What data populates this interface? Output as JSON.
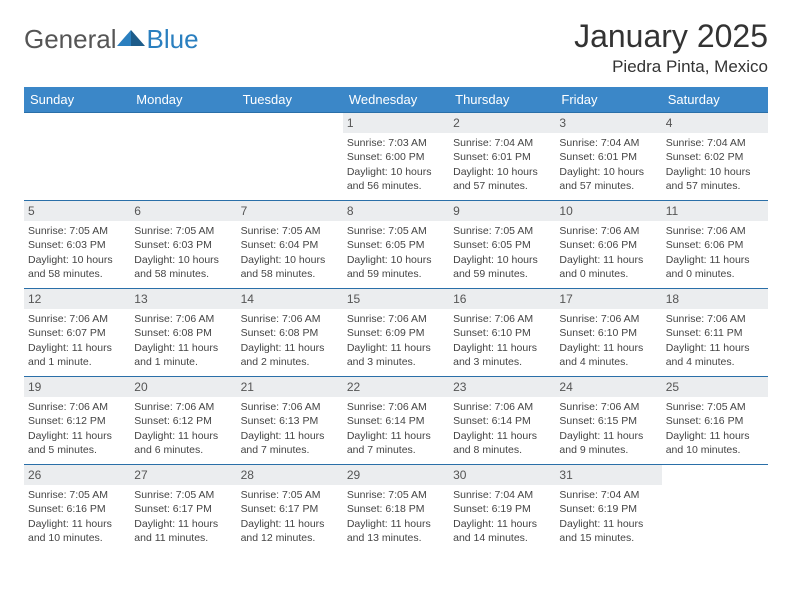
{
  "brand": {
    "general": "General",
    "blue": "Blue"
  },
  "title": {
    "month": "January 2025",
    "location": "Piedra Pinta, Mexico"
  },
  "colors": {
    "header_bg": "#3b87c8",
    "row_border": "#2a6fa8",
    "daynum_bg": "#ebedef",
    "text": "#444444",
    "brand_blue": "#2a7fbf"
  },
  "weekdays": [
    "Sunday",
    "Monday",
    "Tuesday",
    "Wednesday",
    "Thursday",
    "Friday",
    "Saturday"
  ],
  "rows": [
    [
      null,
      null,
      null,
      {
        "d": "1",
        "sr": "7:03 AM",
        "ss": "6:00 PM",
        "dl": "10 hours and 56 minutes."
      },
      {
        "d": "2",
        "sr": "7:04 AM",
        "ss": "6:01 PM",
        "dl": "10 hours and 57 minutes."
      },
      {
        "d": "3",
        "sr": "7:04 AM",
        "ss": "6:01 PM",
        "dl": "10 hours and 57 minutes."
      },
      {
        "d": "4",
        "sr": "7:04 AM",
        "ss": "6:02 PM",
        "dl": "10 hours and 57 minutes."
      }
    ],
    [
      {
        "d": "5",
        "sr": "7:05 AM",
        "ss": "6:03 PM",
        "dl": "10 hours and 58 minutes."
      },
      {
        "d": "6",
        "sr": "7:05 AM",
        "ss": "6:03 PM",
        "dl": "10 hours and 58 minutes."
      },
      {
        "d": "7",
        "sr": "7:05 AM",
        "ss": "6:04 PM",
        "dl": "10 hours and 58 minutes."
      },
      {
        "d": "8",
        "sr": "7:05 AM",
        "ss": "6:05 PM",
        "dl": "10 hours and 59 minutes."
      },
      {
        "d": "9",
        "sr": "7:05 AM",
        "ss": "6:05 PM",
        "dl": "10 hours and 59 minutes."
      },
      {
        "d": "10",
        "sr": "7:06 AM",
        "ss": "6:06 PM",
        "dl": "11 hours and 0 minutes."
      },
      {
        "d": "11",
        "sr": "7:06 AM",
        "ss": "6:06 PM",
        "dl": "11 hours and 0 minutes."
      }
    ],
    [
      {
        "d": "12",
        "sr": "7:06 AM",
        "ss": "6:07 PM",
        "dl": "11 hours and 1 minute."
      },
      {
        "d": "13",
        "sr": "7:06 AM",
        "ss": "6:08 PM",
        "dl": "11 hours and 1 minute."
      },
      {
        "d": "14",
        "sr": "7:06 AM",
        "ss": "6:08 PM",
        "dl": "11 hours and 2 minutes."
      },
      {
        "d": "15",
        "sr": "7:06 AM",
        "ss": "6:09 PM",
        "dl": "11 hours and 3 minutes."
      },
      {
        "d": "16",
        "sr": "7:06 AM",
        "ss": "6:10 PM",
        "dl": "11 hours and 3 minutes."
      },
      {
        "d": "17",
        "sr": "7:06 AM",
        "ss": "6:10 PM",
        "dl": "11 hours and 4 minutes."
      },
      {
        "d": "18",
        "sr": "7:06 AM",
        "ss": "6:11 PM",
        "dl": "11 hours and 4 minutes."
      }
    ],
    [
      {
        "d": "19",
        "sr": "7:06 AM",
        "ss": "6:12 PM",
        "dl": "11 hours and 5 minutes."
      },
      {
        "d": "20",
        "sr": "7:06 AM",
        "ss": "6:12 PM",
        "dl": "11 hours and 6 minutes."
      },
      {
        "d": "21",
        "sr": "7:06 AM",
        "ss": "6:13 PM",
        "dl": "11 hours and 7 minutes."
      },
      {
        "d": "22",
        "sr": "7:06 AM",
        "ss": "6:14 PM",
        "dl": "11 hours and 7 minutes."
      },
      {
        "d": "23",
        "sr": "7:06 AM",
        "ss": "6:14 PM",
        "dl": "11 hours and 8 minutes."
      },
      {
        "d": "24",
        "sr": "7:06 AM",
        "ss": "6:15 PM",
        "dl": "11 hours and 9 minutes."
      },
      {
        "d": "25",
        "sr": "7:05 AM",
        "ss": "6:16 PM",
        "dl": "11 hours and 10 minutes."
      }
    ],
    [
      {
        "d": "26",
        "sr": "7:05 AM",
        "ss": "6:16 PM",
        "dl": "11 hours and 10 minutes."
      },
      {
        "d": "27",
        "sr": "7:05 AM",
        "ss": "6:17 PM",
        "dl": "11 hours and 11 minutes."
      },
      {
        "d": "28",
        "sr": "7:05 AM",
        "ss": "6:17 PM",
        "dl": "11 hours and 12 minutes."
      },
      {
        "d": "29",
        "sr": "7:05 AM",
        "ss": "6:18 PM",
        "dl": "11 hours and 13 minutes."
      },
      {
        "d": "30",
        "sr": "7:04 AM",
        "ss": "6:19 PM",
        "dl": "11 hours and 14 minutes."
      },
      {
        "d": "31",
        "sr": "7:04 AM",
        "ss": "6:19 PM",
        "dl": "11 hours and 15 minutes."
      },
      null
    ]
  ],
  "labels": {
    "sunrise": "Sunrise:",
    "sunset": "Sunset:",
    "daylight": "Daylight:"
  }
}
